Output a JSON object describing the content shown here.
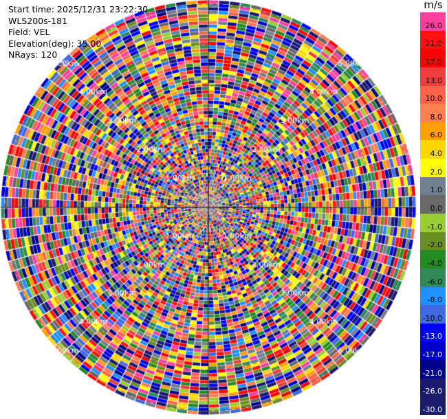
{
  "info": {
    "start_time": "Start time: 2025/12/31 23:22:30",
    "site": "WLS200s-181",
    "field": "Field: VEL",
    "elevation": "Elevation(deg): 35.00",
    "nrays": "NRays: 120"
  },
  "colorbar": {
    "unit": "m/s",
    "levels": [
      {
        "label": "26.0",
        "color": "#ff3fa0"
      },
      {
        "label": "21.0",
        "color": "#ff1010"
      },
      {
        "label": "17.0",
        "color": "#ff0000"
      },
      {
        "label": "13.0",
        "color": "#f03c3c"
      },
      {
        "label": "10.0",
        "color": "#ff6347"
      },
      {
        "label": "8.0",
        "color": "#ff7f50"
      },
      {
        "label": "6.0",
        "color": "#ff9f00"
      },
      {
        "label": "4.0",
        "color": "#ffd700"
      },
      {
        "label": "2.0",
        "color": "#ffff00"
      },
      {
        "label": "1.0",
        "color": "#708090"
      },
      {
        "label": "0.0",
        "color": "#696969"
      },
      {
        "label": "-1.0",
        "color": "#9acd32"
      },
      {
        "label": "-2.0",
        "color": "#6b8e23"
      },
      {
        "label": "-4.0",
        "color": "#228b22"
      },
      {
        "label": "-6.0",
        "color": "#2e8b57"
      },
      {
        "label": "-8.0",
        "color": "#1e90ff"
      },
      {
        "label": "-10.0",
        "color": "#4169e1"
      },
      {
        "label": "-13.0",
        "color": "#0000ff"
      },
      {
        "label": "-17.0",
        "color": "#0000cd"
      },
      {
        "label": "-21.0",
        "color": "#00008b"
      },
      {
        "label": "-26.0",
        "color": "#191970"
      },
      {
        "label": "-30.0",
        "color": "#1a1a6e"
      }
    ]
  },
  "chart_data": {
    "type": "heatmap",
    "projection": "polar PPI",
    "field": "VEL",
    "nrays": 120,
    "range_ring_labels": [
      "1.00km",
      "2.00km",
      "3.00km",
      "4.00km",
      "5.00km"
    ],
    "range_rings_km": [
      1,
      2,
      3,
      4,
      5
    ],
    "max_range_km": 5.1,
    "unit": "m/s",
    "value_range": [
      -30,
      30
    ],
    "data_note": "noise-like random velocities; per-gate values not legible"
  }
}
